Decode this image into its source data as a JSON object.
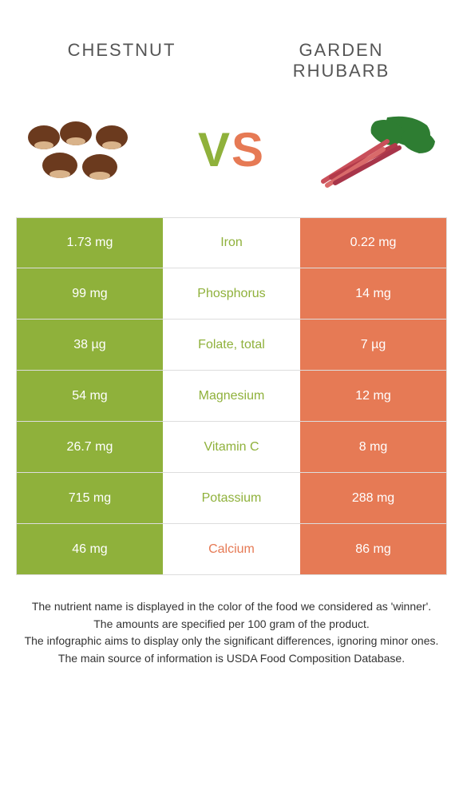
{
  "header": {
    "left": "Chestnut",
    "right": "Garden Rhubarb"
  },
  "vs": {
    "v": "V",
    "s": "S"
  },
  "colors": {
    "left": "#8fb13b",
    "right": "#e67a55",
    "border": "#dddddd",
    "text": "#333333",
    "bg": "#ffffff"
  },
  "rows": [
    {
      "left": "1.73 mg",
      "label": "Iron",
      "right": "0.22 mg",
      "winner": "left"
    },
    {
      "left": "99 mg",
      "label": "Phosphorus",
      "right": "14 mg",
      "winner": "left"
    },
    {
      "left": "38 µg",
      "label": "Folate, total",
      "right": "7 µg",
      "winner": "left"
    },
    {
      "left": "54 mg",
      "label": "Magnesium",
      "right": "12 mg",
      "winner": "left"
    },
    {
      "left": "26.7 mg",
      "label": "Vitamin C",
      "right": "8 mg",
      "winner": "left"
    },
    {
      "left": "715 mg",
      "label": "Potassium",
      "right": "288 mg",
      "winner": "left"
    },
    {
      "left": "46 mg",
      "label": "Calcium",
      "right": "86 mg",
      "winner": "right"
    }
  ],
  "footer": {
    "l1": "The nutrient name is displayed in the color of the food we considered as 'winner'.",
    "l2": "The amounts are specified per 100 gram of the product.",
    "l3": "The infographic aims to display only the significant differences, ignoring minor ones.",
    "l4": "The main source of information is USDA Food Composition Database."
  }
}
